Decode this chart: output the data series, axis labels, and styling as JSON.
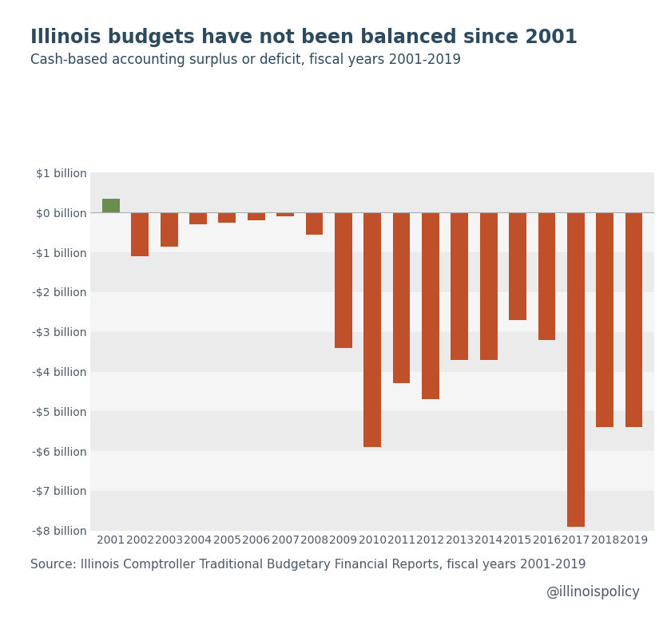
{
  "title": "Illinois budgets have not been balanced since 2001",
  "subtitle": "Cash-based accounting surplus or deficit, fiscal years 2001-2019",
  "source_text": "Source: Illinois Comptroller Traditional Budgetary Financial Reports, fiscal years 2001-2019",
  "watermark": "@illinoispolicy",
  "years": [
    2001,
    2002,
    2003,
    2004,
    2005,
    2006,
    2007,
    2008,
    2009,
    2010,
    2011,
    2012,
    2013,
    2014,
    2015,
    2016,
    2017,
    2018,
    2019
  ],
  "values": [
    0.35,
    -1.1,
    -0.85,
    -0.3,
    -0.25,
    -0.2,
    -0.1,
    -0.55,
    -3.4,
    -5.9,
    -4.3,
    -4.7,
    -3.7,
    -3.7,
    -2.7,
    -3.2,
    -7.9,
    -5.4,
    -5.4
  ],
  "bar_colors_pos": "#6b8e4e",
  "bar_colors_neg": "#c0502a",
  "background_color": "#ffffff",
  "plot_bg_color": "#f0f0f0",
  "title_color": "#2d4a5e",
  "subtitle_color": "#2d4a5e",
  "axis_label_color": "#4a5a6a",
  "ylim": [
    -8,
    1
  ],
  "yticks": [
    1,
    0,
    -1,
    -2,
    -3,
    -4,
    -5,
    -6,
    -7,
    -8
  ],
  "ytick_labels": [
    "$1 billion",
    "$0 billion",
    "-$1 billion",
    "-$2 billion",
    "-$3 billion",
    "-$4 billion",
    "-$5 billion",
    "-$6 billion",
    "-$7 billion",
    "-$8 billion"
  ],
  "title_fontsize": 17,
  "subtitle_fontsize": 12,
  "source_fontsize": 11,
  "watermark_fontsize": 12,
  "axis_fontsize": 10,
  "bar_width": 0.6,
  "band_colors": [
    "#ebebeb",
    "#f5f5f5"
  ],
  "zero_line_color": "#aaaaaa"
}
